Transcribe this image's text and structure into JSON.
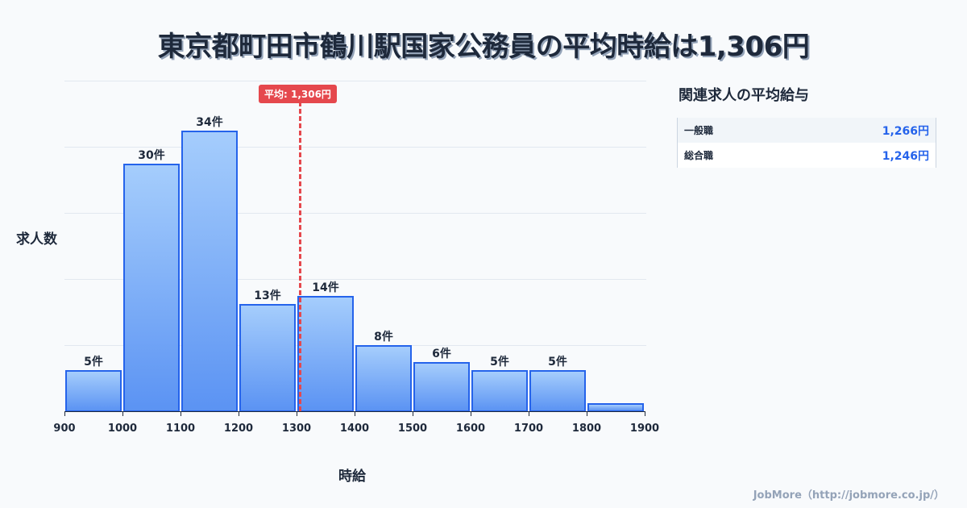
{
  "title": "東京都町田市鶴川駅国家公務員の平均時給は1,306円",
  "average_badge": "平均: 1,306円",
  "axis": {
    "ylabel": "求人数",
    "xlabel": "時給"
  },
  "sidebar": {
    "title": "関連求人の平均給与",
    "rows": [
      {
        "label": "一般職",
        "value": "1,266円"
      },
      {
        "label": "総合職",
        "value": "1,246円"
      }
    ]
  },
  "footer": "JobMore（http://jobmore.co.jp/）",
  "colors": {
    "bar": "#5b93f3",
    "bar_border": "#2563eb",
    "average_line": "#e5484d",
    "accent_value": "#2563eb"
  },
  "chart_data": {
    "type": "bar",
    "title": "東京都町田市鶴川駅国家公務員の平均時給は1,306円",
    "xlabel": "時給",
    "ylabel": "求人数",
    "bins": [
      [
        900,
        1000
      ],
      [
        1000,
        1100
      ],
      [
        1100,
        1200
      ],
      [
        1200,
        1300
      ],
      [
        1300,
        1400
      ],
      [
        1400,
        1500
      ],
      [
        1500,
        1600
      ],
      [
        1600,
        1700
      ],
      [
        1700,
        1800
      ],
      [
        1800,
        1900
      ]
    ],
    "categories": [
      "900-1000",
      "1000-1100",
      "1100-1200",
      "1200-1300",
      "1300-1400",
      "1400-1500",
      "1500-1600",
      "1600-1700",
      "1700-1800",
      "1800-1900"
    ],
    "values": [
      5,
      30,
      34,
      13,
      14,
      8,
      6,
      5,
      5,
      1
    ],
    "labels": [
      "5件",
      "30件",
      "34件",
      "13件",
      "14件",
      "8件",
      "6件",
      "5件",
      "5件",
      ""
    ],
    "x_ticks": [
      "900",
      "1000",
      "1100",
      "1200",
      "1300",
      "1400",
      "1500",
      "1600",
      "1700",
      "1800",
      "1900"
    ],
    "ylim": [
      0,
      40
    ],
    "grid": true,
    "average": 1306,
    "average_label": "平均: 1,306円"
  }
}
